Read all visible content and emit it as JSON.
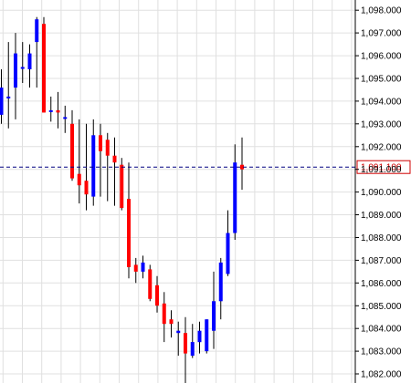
{
  "chart_data": {
    "type": "candlestick",
    "title": "",
    "xlabel": "",
    "ylabel": "",
    "ylim": [
      1081.6,
      1098.45
    ],
    "grid": true,
    "y_axis_side": "right",
    "y_ticks": [
      1082,
      1083,
      1084,
      1085,
      1086,
      1087,
      1088,
      1089,
      1090,
      1091,
      1092,
      1093,
      1094,
      1095,
      1096,
      1097,
      1098
    ],
    "y_tick_labels": [
      "1,082.000",
      "1,083.000",
      "1,084.000",
      "1,085.000",
      "1,086.000",
      "1,087.000",
      "1,088.000",
      "1,089.000",
      "1,090.000",
      "1,091.000",
      "1,092.000",
      "1,093.000",
      "1,094.000",
      "1,095.000",
      "1,096.000",
      "1,097.000",
      "1,098.000"
    ],
    "current_price": 1091.1,
    "current_price_label": "1,091.100",
    "colors": {
      "bullish": "#0000ff",
      "bearish": "#ff0000",
      "wick": "#000000",
      "grid": "#e0e0e0",
      "price_line": "#000080",
      "price_label": "#d00000"
    },
    "candles": [
      {
        "open": 1093.4,
        "high": 1095.4,
        "low": 1093.0,
        "close": 1094.6
      },
      {
        "open": 1094.2,
        "high": 1096.6,
        "low": 1092.8,
        "close": 1094.2
      },
      {
        "open": 1094.6,
        "high": 1097.0,
        "low": 1093.2,
        "close": 1096.1
      },
      {
        "open": 1095.5,
        "high": 1096.6,
        "low": 1094.8,
        "close": 1095.5
      },
      {
        "open": 1095.4,
        "high": 1096.5,
        "low": 1094.6,
        "close": 1096.1
      },
      {
        "open": 1096.6,
        "high": 1097.7,
        "low": 1094.6,
        "close": 1097.6
      },
      {
        "open": 1097.4,
        "high": 1097.7,
        "low": 1093.5,
        "close": 1093.5
      },
      {
        "open": 1093.6,
        "high": 1094.2,
        "low": 1093.1,
        "close": 1093.6
      },
      {
        "open": 1093.6,
        "high": 1094.4,
        "low": 1092.8,
        "close": 1093.5
      },
      {
        "open": 1093.3,
        "high": 1093.8,
        "low": 1092.6,
        "close": 1093.3
      },
      {
        "open": 1093.0,
        "high": 1093.6,
        "low": 1090.5,
        "close": 1090.6
      },
      {
        "open": 1090.8,
        "high": 1093.2,
        "low": 1089.5,
        "close": 1090.3
      },
      {
        "open": 1090.5,
        "high": 1093.0,
        "low": 1089.2,
        "close": 1089.9
      },
      {
        "open": 1089.8,
        "high": 1093.2,
        "low": 1089.4,
        "close": 1092.5
      },
      {
        "open": 1092.5,
        "high": 1093.0,
        "low": 1089.8,
        "close": 1091.8
      },
      {
        "open": 1092.3,
        "high": 1092.6,
        "low": 1089.6,
        "close": 1091.6
      },
      {
        "open": 1091.6,
        "high": 1092.4,
        "low": 1089.4,
        "close": 1091.3
      },
      {
        "open": 1091.2,
        "high": 1091.5,
        "low": 1089.2,
        "close": 1089.3
      },
      {
        "open": 1089.7,
        "high": 1091.3,
        "low": 1086.2,
        "close": 1086.7
      },
      {
        "open": 1086.8,
        "high": 1087.1,
        "low": 1086.0,
        "close": 1086.5
      },
      {
        "open": 1086.5,
        "high": 1087.2,
        "low": 1086.2,
        "close": 1086.9
      },
      {
        "open": 1086.6,
        "high": 1086.8,
        "low": 1085.2,
        "close": 1085.3
      },
      {
        "open": 1085.9,
        "high": 1086.3,
        "low": 1084.7,
        "close": 1085.0
      },
      {
        "open": 1085.1,
        "high": 1085.6,
        "low": 1083.4,
        "close": 1084.2
      },
      {
        "open": 1084.4,
        "high": 1084.8,
        "low": 1083.6,
        "close": 1084.2
      },
      {
        "open": 1083.8,
        "high": 1084.3,
        "low": 1082.8,
        "close": 1083.9
      },
      {
        "open": 1083.8,
        "high": 1084.5,
        "low": 1081.6,
        "close": 1082.9
      },
      {
        "open": 1082.8,
        "high": 1084.2,
        "low": 1082.7,
        "close": 1083.4
      },
      {
        "open": 1083.4,
        "high": 1084.3,
        "low": 1082.9,
        "close": 1083.9
      },
      {
        "open": 1083.0,
        "high": 1084.4,
        "low": 1082.9,
        "close": 1084.4
      },
      {
        "open": 1083.9,
        "high": 1086.5,
        "low": 1083.1,
        "close": 1085.2
      },
      {
        "open": 1085.2,
        "high": 1087.1,
        "low": 1084.4,
        "close": 1086.9
      },
      {
        "open": 1086.4,
        "high": 1089.2,
        "low": 1086.3,
        "close": 1088.2
      },
      {
        "open": 1088.2,
        "high": 1092.1,
        "low": 1087.9,
        "close": 1091.3
      },
      {
        "open": 1091.2,
        "high": 1092.4,
        "low": 1090.1,
        "close": 1091.0
      }
    ]
  }
}
